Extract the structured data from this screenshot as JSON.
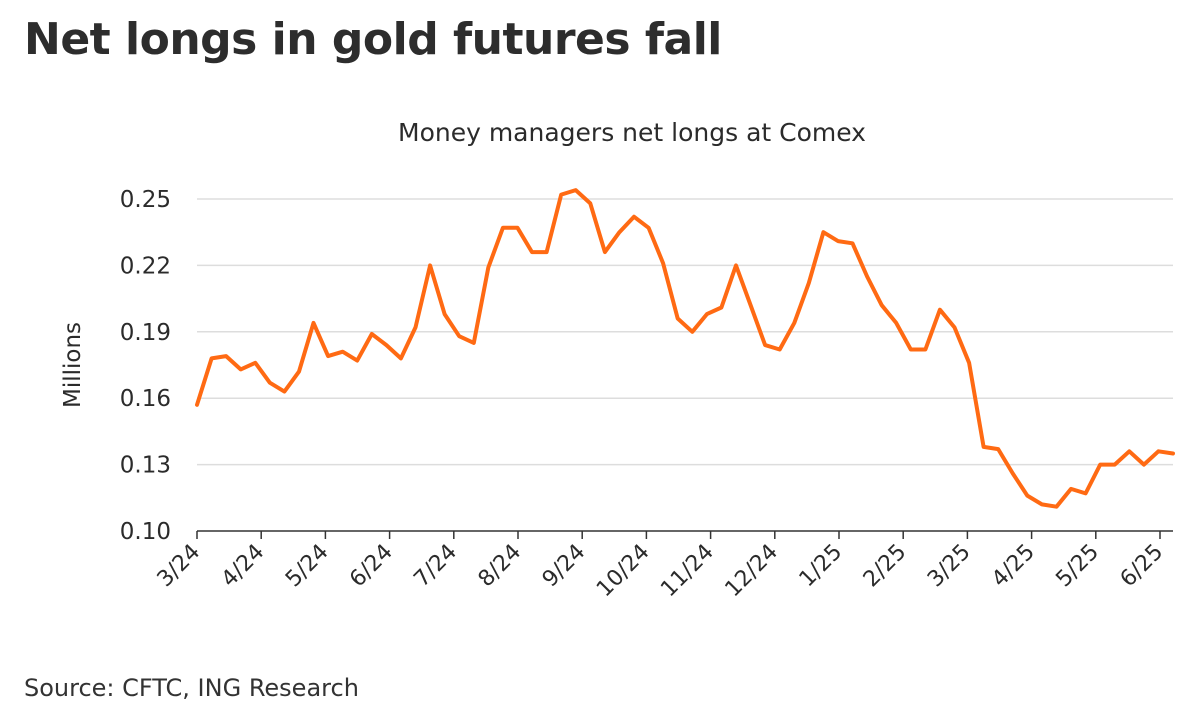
{
  "headline": "Net longs in gold futures fall",
  "source": "Source: CFTC, ING Research",
  "colors": {
    "line": "#FF6A13",
    "grid": "#dddddd",
    "axis": "#333333"
  },
  "chart_data": {
    "type": "line",
    "title": "Money managers net longs at Comex",
    "xlabel": "",
    "ylabel": "Millions",
    "ylim": [
      0.1,
      0.25
    ],
    "yticks": [
      "0.25",
      "0.22",
      "0.19",
      "0.16",
      "0.13",
      "0.10"
    ],
    "ytick_values": [
      0.25,
      0.22,
      0.19,
      0.16,
      0.13,
      0.1
    ],
    "x_tick_labels": [
      "3/24",
      "4/24",
      "5/24",
      "6/24",
      "7/24",
      "8/24",
      "9/24",
      "10/24",
      "11/24",
      "12/24",
      "1/25",
      "2/25",
      "3/25",
      "4/25",
      "5/25",
      "6/25"
    ],
    "grid": true,
    "legend": "none",
    "series": [
      {
        "values": [
          0.157,
          0.178,
          0.179,
          0.173,
          0.176,
          0.167,
          0.163,
          0.172,
          0.194,
          0.179,
          0.181,
          0.177,
          0.189,
          0.184,
          0.178,
          0.192,
          0.22,
          0.198,
          0.188,
          0.185,
          0.219,
          0.237,
          0.237,
          0.226,
          0.226,
          0.252,
          0.254,
          0.248,
          0.226,
          0.235,
          0.242,
          0.237,
          0.221,
          0.196,
          0.19,
          0.198,
          0.201,
          0.22,
          0.202,
          0.184,
          0.182,
          0.194,
          0.212,
          0.235,
          0.231,
          0.23,
          0.215,
          0.202,
          0.194,
          0.182,
          0.182,
          0.2,
          0.192,
          0.176,
          0.138,
          0.137,
          0.126,
          0.116,
          0.112,
          0.111,
          0.119,
          0.117,
          0.13,
          0.13,
          0.136,
          0.13,
          0.136,
          0.135
        ]
      }
    ]
  }
}
